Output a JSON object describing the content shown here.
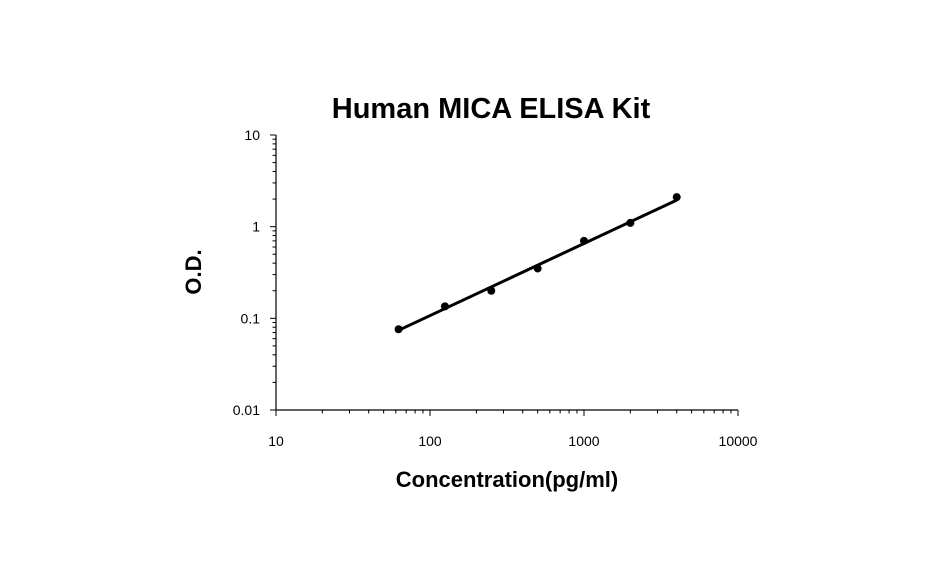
{
  "chart_data": {
    "type": "scatter",
    "title": "Human MICA ELISA Kit",
    "xlabel": "Concentration(pg/ml)",
    "ylabel": "O.D.",
    "x_scale": "log",
    "y_scale": "log",
    "xlim": [
      10,
      10000
    ],
    "ylim": [
      0.01,
      10
    ],
    "x_ticks": [
      "10",
      "100",
      "1000",
      "10000"
    ],
    "y_ticks": [
      "0.01",
      "0.1",
      "1",
      "10"
    ],
    "grid": false,
    "legend": "none",
    "series": [
      {
        "x": [
          62.5,
          125,
          250,
          500,
          1000,
          2000,
          4000
        ],
        "y": [
          0.076,
          0.135,
          0.2,
          0.35,
          0.7,
          1.1,
          2.1
        ]
      }
    ],
    "trendline": {
      "x": [
        62.5,
        4000
      ],
      "y": [
        0.074,
        1.95
      ]
    }
  }
}
